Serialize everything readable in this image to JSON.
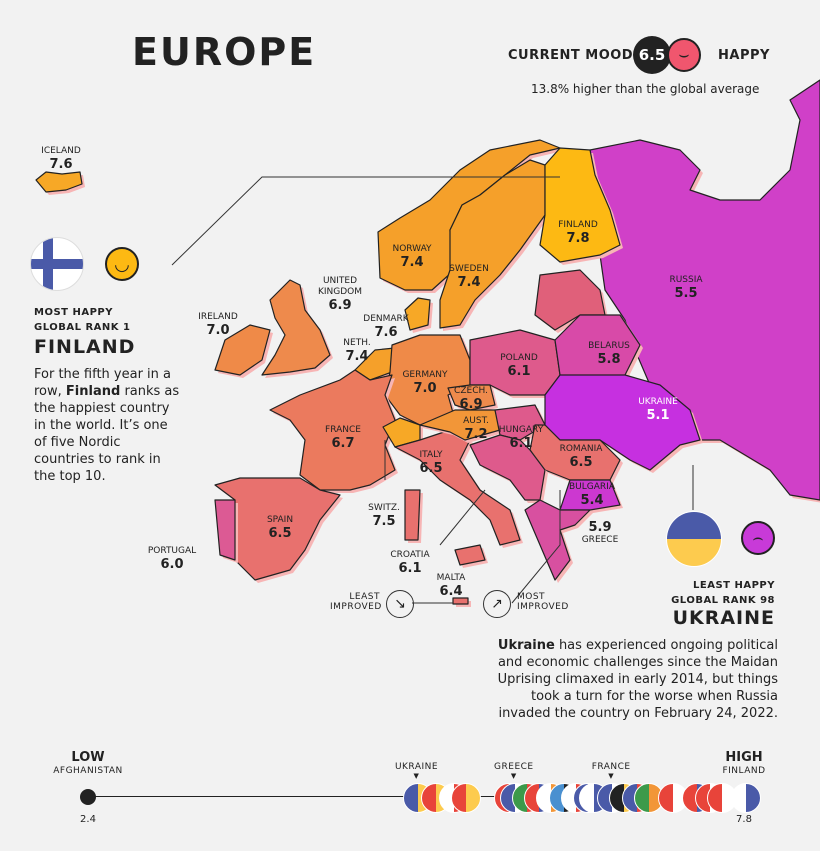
{
  "title": "EUROPE",
  "mood": {
    "label": "CURRENT MOOD",
    "score": "6.5",
    "status": "HAPPY",
    "note": "13.8% higher than the global average",
    "face_color": "#f0566e"
  },
  "most_happy": {
    "caption": "MOST HAPPY",
    "rank_label": "GLOBAL RANK",
    "rank": "1",
    "country": "FINLAND",
    "text_pre": "For the fifth year in a row, ",
    "text_bold": "Finland",
    "text_post": " ranks as the happiest country in the world. It’s one of five Nordic countries to rank in the top 10.",
    "face_color": "#fdb913"
  },
  "least_happy": {
    "caption": "LEAST HAPPY",
    "rank_label": "GLOBAL RANK",
    "rank": "98",
    "country": "UKRAINE",
    "text_bold": "Ukraine",
    "text_post": " has experienced ongoing political and economic challenges since the Maidan Uprising climaxed in early 2014, but things took a turn for the worse when Russia invaded the country on February 24, 2022.",
    "face_color": "#c83ad8"
  },
  "legend": {
    "least_improved": [
      "LEAST",
      "IMPROVED"
    ],
    "most_improved": [
      "MOST",
      "IMPROVED"
    ]
  },
  "countries": [
    {
      "id": "iceland",
      "name": "ICELAND",
      "score": "7.6",
      "color": "#f7a826"
    },
    {
      "id": "norway",
      "name": "NORWAY",
      "score": "7.4",
      "color": "#f5a02a"
    },
    {
      "id": "sweden",
      "name": "SWEDEN",
      "score": "7.4",
      "color": "#f5a02a"
    },
    {
      "id": "finland",
      "name": "FINLAND",
      "score": "7.8",
      "color": "#fdb913"
    },
    {
      "id": "russia",
      "name": "RUSSIA",
      "score": "5.5",
      "color": "#d040c8"
    },
    {
      "id": "uk",
      "name": "UNITED KINGDOM",
      "score": "6.9",
      "color": "#ee8a4c"
    },
    {
      "id": "ireland",
      "name": "IRELAND",
      "score": "7.0",
      "color": "#ef8a48"
    },
    {
      "id": "denmark",
      "name": "DENMARK",
      "score": "7.6",
      "color": "#f7a826"
    },
    {
      "id": "neth",
      "name": "NETH.",
      "score": "7.4",
      "color": "#f5a02a"
    },
    {
      "id": "germany",
      "name": "GERMANY",
      "score": "7.0",
      "color": "#ef8a48"
    },
    {
      "id": "poland",
      "name": "POLAND",
      "score": "6.1",
      "color": "#de5a8c"
    },
    {
      "id": "belarus",
      "name": "BELARUS",
      "score": "5.8",
      "color": "#d84aa8"
    },
    {
      "id": "czech",
      "name": "CZECH.",
      "score": "6.9",
      "color": "#ee8a4c"
    },
    {
      "id": "austria",
      "name": "AUST.",
      "score": "7.2",
      "color": "#f29638"
    },
    {
      "id": "hungary",
      "name": "HUNGARY",
      "score": "6.1",
      "color": "#de5a8c"
    },
    {
      "id": "ukraine",
      "name": "UKRAINE",
      "score": "5.1",
      "color": "#c630e0"
    },
    {
      "id": "france",
      "name": "FRANCE",
      "score": "6.7",
      "color": "#eb7a5e"
    },
    {
      "id": "romania",
      "name": "ROMANIA",
      "score": "6.5",
      "color": "#e8716e"
    },
    {
      "id": "bulgaria",
      "name": "BULGARIA",
      "score": "5.4",
      "color": "#cc38d0"
    },
    {
      "id": "italy",
      "name": "ITALY",
      "score": "6.5",
      "color": "#e8716e"
    },
    {
      "id": "switz",
      "name": "SWITZ.",
      "score": "7.5",
      "color": "#f7a826"
    },
    {
      "id": "spain",
      "name": "SPAIN",
      "score": "6.5",
      "color": "#e8716e"
    },
    {
      "id": "portugal",
      "name": "PORTUGAL",
      "score": "6.0",
      "color": "#dc5a94"
    },
    {
      "id": "croatia",
      "name": "CROATIA",
      "score": "6.1",
      "color": "#de5a8c"
    },
    {
      "id": "greece",
      "name": "GREECE",
      "score": "5.9",
      "color": "#d850a0"
    },
    {
      "id": "malta",
      "name": "MALTA",
      "score": "6.4",
      "color": "#e8716e"
    }
  ],
  "scale": {
    "low_label": "LOW",
    "low_country": "AFGHANISTAN",
    "low_value": "2.4",
    "high_label": "HIGH",
    "high_country": "FINLAND",
    "high_value": "7.8",
    "markers": [
      {
        "name": "UKRAINE",
        "score": 5.1
      },
      {
        "name": "GREECE",
        "score": 5.9
      },
      {
        "name": "FRANCE",
        "score": 6.7
      }
    ],
    "flags": [
      {
        "score": 5.1,
        "colors": [
          "#4a5aa8",
          "#fdcb4e"
        ]
      },
      {
        "score": 5.25,
        "colors": [
          "#e8443a",
          "#fdcb4e"
        ]
      },
      {
        "score": 5.4,
        "colors": [
          "#ffffff",
          "#e8443a"
        ]
      },
      {
        "score": 5.5,
        "colors": [
          "#e8443a",
          "#fdcb4e"
        ]
      },
      {
        "score": 5.85,
        "colors": [
          "#e8443a",
          "#fdcb4e"
        ]
      },
      {
        "score": 5.9,
        "colors": [
          "#4a5aa8",
          "#ffffff"
        ]
      },
      {
        "score": 6.0,
        "colors": [
          "#3c9a4a",
          "#e8443a"
        ]
      },
      {
        "score": 6.1,
        "colors": [
          "#e8443a",
          "#4a5aa8"
        ]
      },
      {
        "score": 6.2,
        "colors": [
          "#ffffff",
          "#f29638"
        ]
      },
      {
        "score": 6.3,
        "colors": [
          "#4a90d0",
          "#222222"
        ]
      },
      {
        "score": 6.4,
        "colors": [
          "#ffffff",
          "#e8443a"
        ]
      },
      {
        "score": 6.5,
        "colors": [
          "#4a5aa8",
          "#fdcb4e"
        ]
      },
      {
        "score": 6.55,
        "colors": [
          "#ffffff",
          "#4a5aa8"
        ]
      },
      {
        "score": 6.7,
        "colors": [
          "#4a5aa8",
          "#ffffff"
        ]
      },
      {
        "score": 6.8,
        "colors": [
          "#222222",
          "#fdcb4e"
        ]
      },
      {
        "score": 6.9,
        "colors": [
          "#4a5aa8",
          "#e8443a"
        ]
      },
      {
        "score": 7.0,
        "colors": [
          "#3c9a4a",
          "#f29638"
        ]
      },
      {
        "score": 7.2,
        "colors": [
          "#e8443a",
          "#ffffff"
        ]
      },
      {
        "score": 7.4,
        "colors": [
          "#e8443a",
          "#4a5aa8"
        ]
      },
      {
        "score": 7.5,
        "colors": [
          "#e8443a",
          "#ffffff"
        ]
      },
      {
        "score": 7.6,
        "colors": [
          "#e8443a",
          "#ffffff"
        ]
      },
      {
        "score": 7.8,
        "colors": [
          "#ffffff",
          "#4a5aa8"
        ]
      }
    ]
  }
}
